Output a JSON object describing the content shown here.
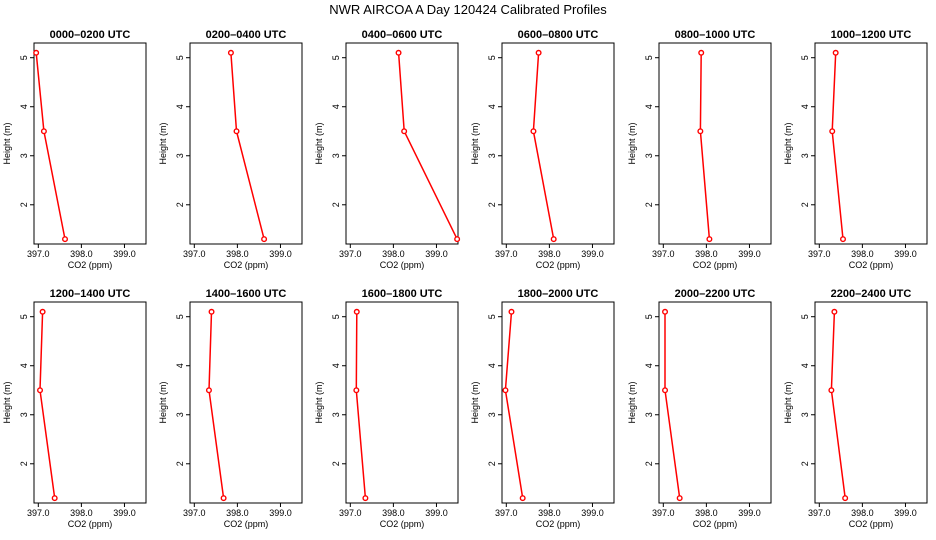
{
  "chart_data": {
    "type": "line",
    "title": "NWR AIRCOA A  Day 120424  Calibrated Profiles",
    "xlabel": "CO2 (ppm)",
    "ylabel": "Height (m)",
    "xlim": [
      396.9,
      399.5
    ],
    "ylim": [
      1.2,
      5.3
    ],
    "xticks": [
      397.0,
      398.0,
      399.0
    ],
    "xtick_labels": [
      "397.0",
      "398.0",
      "399.0"
    ],
    "yticks": [
      2,
      3,
      4,
      5
    ],
    "ytick_labels": [
      "2",
      "3",
      "4",
      "5"
    ],
    "line_color": "#ff0000",
    "heights": [
      5.1,
      3.5,
      1.3
    ],
    "panels": [
      {
        "title": "0000–0200 UTC",
        "co2": [
          396.95,
          397.13,
          397.62
        ]
      },
      {
        "title": "0200–0400 UTC",
        "co2": [
          397.85,
          397.98,
          398.62
        ]
      },
      {
        "title": "0400–0600 UTC",
        "co2": [
          398.12,
          398.25,
          399.48
        ]
      },
      {
        "title": "0600–0800 UTC",
        "co2": [
          397.75,
          397.63,
          398.1
        ]
      },
      {
        "title": "0800–1000 UTC",
        "co2": [
          397.88,
          397.86,
          398.07
        ]
      },
      {
        "title": "1000–1200 UTC",
        "co2": [
          397.38,
          397.3,
          397.55
        ]
      },
      {
        "title": "1200–1400 UTC",
        "co2": [
          397.1,
          397.04,
          397.38
        ]
      },
      {
        "title": "1400–1600 UTC",
        "co2": [
          397.4,
          397.34,
          397.68
        ]
      },
      {
        "title": "1600–1800 UTC",
        "co2": [
          397.15,
          397.14,
          397.35
        ]
      },
      {
        "title": "1800–2000 UTC",
        "co2": [
          397.12,
          396.98,
          397.38
        ]
      },
      {
        "title": "2000–2200 UTC",
        "co2": [
          397.04,
          397.04,
          397.38
        ]
      },
      {
        "title": "2200–2400 UTC",
        "co2": [
          397.35,
          397.28,
          397.6
        ]
      }
    ]
  }
}
